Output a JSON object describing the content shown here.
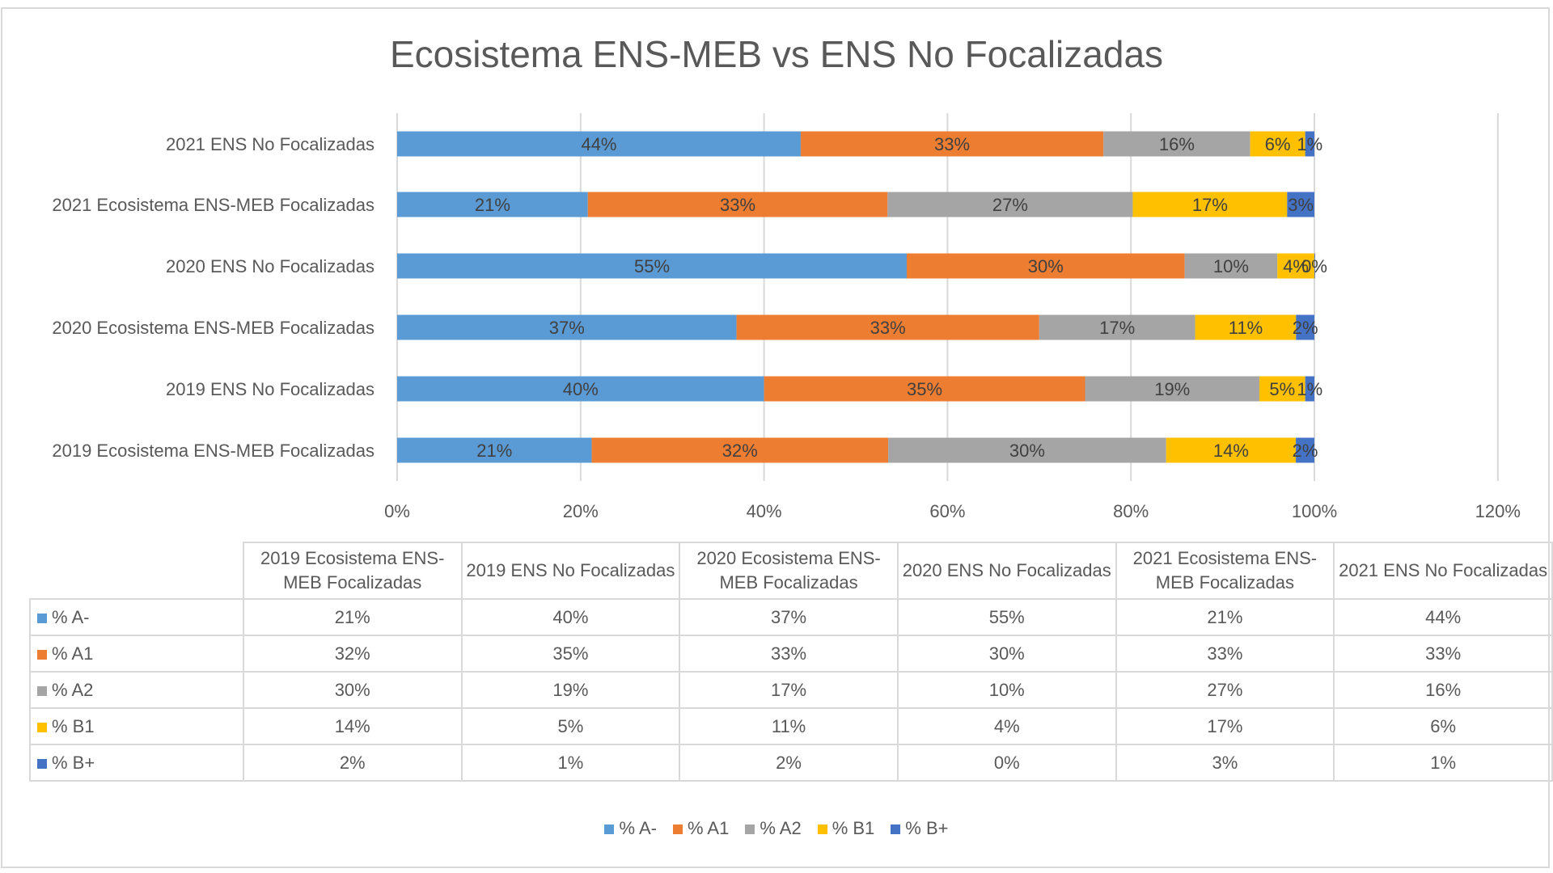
{
  "chart_data": {
    "type": "bar",
    "orientation": "horizontal",
    "stacked": "percent",
    "title": "Ecosistema ENS-MEB vs ENS No Focalizadas",
    "categories": [
      "2019 Ecosistema ENS-MEB Focalizadas",
      "2019 ENS No Focalizadas",
      "2020 Ecosistema ENS-MEB Focalizadas",
      "2020 ENS No Focalizadas",
      "2021 Ecosistema ENS-MEB Focalizadas",
      "2021 ENS No Focalizadas"
    ],
    "table_headers": [
      "2019 Ecosistema ENS-MEB Focalizadas",
      "2019 ENS No Focalizadas",
      "2020 Ecosistema ENS-MEB Focalizadas",
      "2020 ENS No Focalizadas",
      "2021 Ecosistema ENS-MEB Focalizadas",
      "2021 ENS No Focalizadas"
    ],
    "series": [
      {
        "name": "% A-",
        "color": "#5b9bd5",
        "values": [
          21,
          40,
          37,
          55,
          21,
          44
        ],
        "labels": [
          "21%",
          "40%",
          "37%",
          "55%",
          "21%",
          "44%"
        ]
      },
      {
        "name": "% A1",
        "color": "#ed7d31",
        "values": [
          32,
          35,
          33,
          30,
          33,
          33
        ],
        "labels": [
          "32%",
          "35%",
          "33%",
          "30%",
          "33%",
          "33%"
        ]
      },
      {
        "name": "% A2",
        "color": "#a5a5a5",
        "values": [
          30,
          19,
          17,
          10,
          27,
          16
        ],
        "labels": [
          "30%",
          "19%",
          "17%",
          "10%",
          "27%",
          "16%"
        ]
      },
      {
        "name": "% B1",
        "color": "#ffc000",
        "values": [
          14,
          5,
          11,
          4,
          17,
          6
        ],
        "labels": [
          "14%",
          "5%",
          "11%",
          "4%",
          "17%",
          "6%"
        ]
      },
      {
        "name": "% B+",
        "color": "#4472c4",
        "values": [
          2,
          1,
          2,
          0,
          3,
          1
        ],
        "labels": [
          "2%",
          "1%",
          "2%",
          "0%",
          "3%",
          "1%"
        ]
      }
    ],
    "xticks": [
      "0%",
      "20%",
      "40%",
      "60%",
      "80%",
      "100%",
      "120%"
    ],
    "xlim": [
      0,
      120
    ],
    "grid": true,
    "legend": "bottom"
  }
}
